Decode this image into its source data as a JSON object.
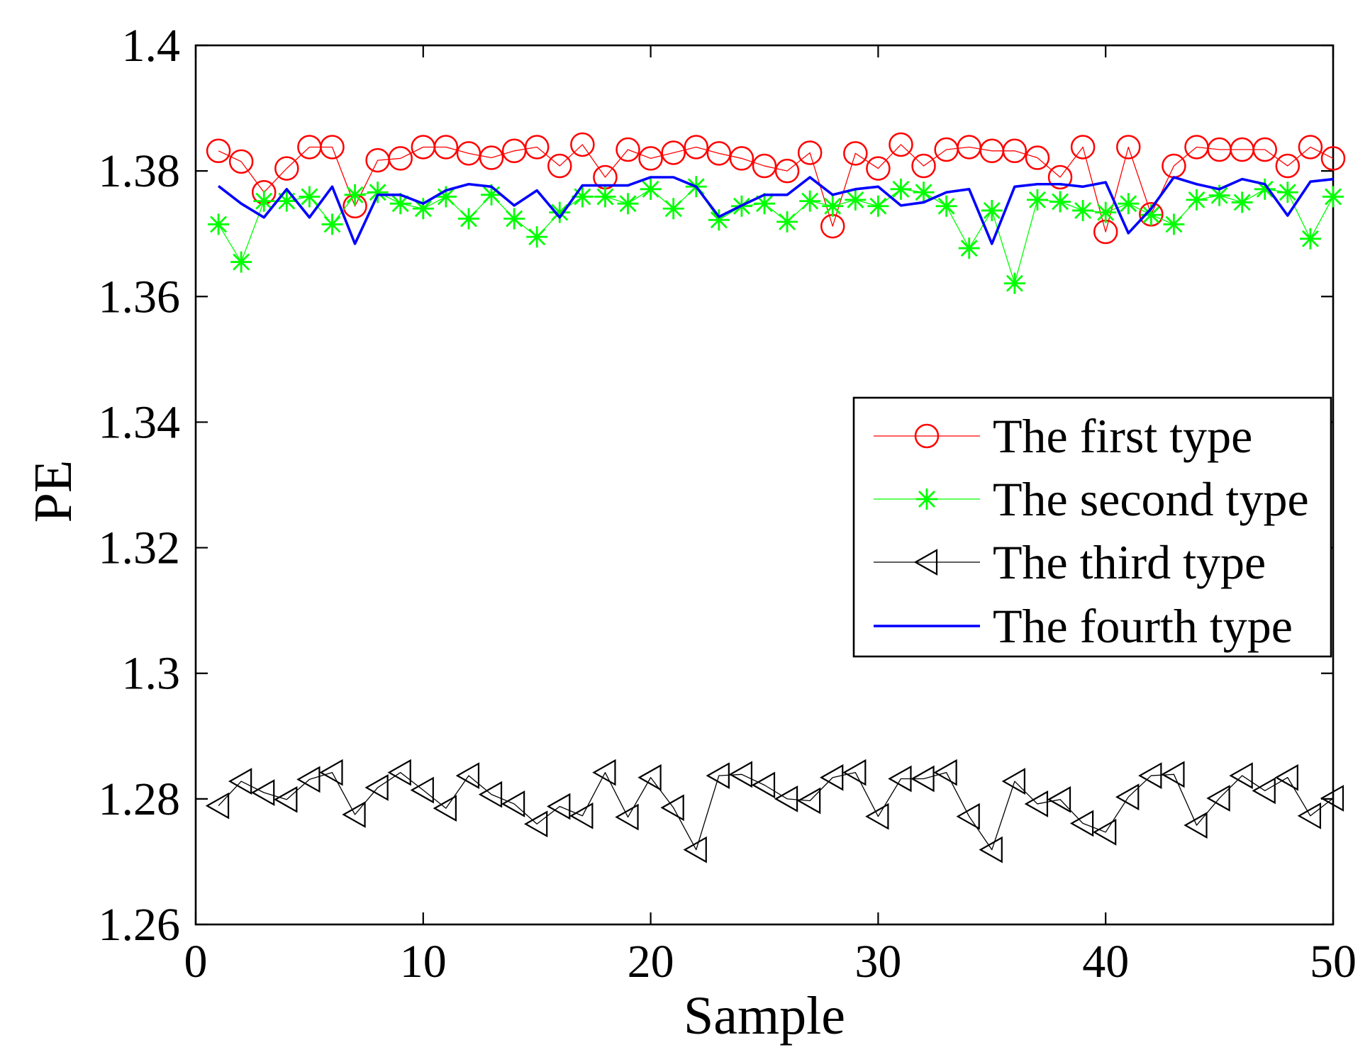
{
  "chart_data": {
    "type": "line",
    "xlabel": "Sample",
    "ylabel": "PE",
    "xlim": [
      0,
      50
    ],
    "ylim": [
      1.26,
      1.4
    ],
    "xticks": [
      0,
      10,
      20,
      30,
      40,
      50
    ],
    "xticklabels": [
      "0",
      "10",
      "20",
      "30",
      "40",
      "50"
    ],
    "yticks": [
      1.26,
      1.28,
      1.3,
      1.32,
      1.34,
      1.36,
      1.38,
      1.4
    ],
    "yticklabels": [
      "1.26",
      "1.28",
      "1.3",
      "1.32",
      "1.34",
      "1.36",
      "1.38",
      "1.4"
    ],
    "grid": false,
    "legend_position": "center-right",
    "x": [
      1,
      2,
      3,
      4,
      5,
      6,
      7,
      8,
      9,
      10,
      11,
      12,
      13,
      14,
      15,
      16,
      17,
      18,
      19,
      20,
      21,
      22,
      23,
      24,
      25,
      26,
      27,
      28,
      29,
      30,
      31,
      32,
      33,
      34,
      35,
      36,
      37,
      38,
      39,
      40,
      41,
      42,
      43,
      44,
      45,
      46,
      47,
      48,
      49,
      50
    ],
    "series": [
      {
        "name": "The first type",
        "color": "#ff0000",
        "marker": "circle",
        "values": [
          1.3832,
          1.3815,
          1.3766,
          1.3804,
          1.3838,
          1.3838,
          1.3744,
          1.3817,
          1.382,
          1.3838,
          1.3838,
          1.3828,
          1.3821,
          1.3832,
          1.3838,
          1.3808,
          1.3842,
          1.379,
          1.3834,
          1.382,
          1.3829,
          1.3838,
          1.3828,
          1.382,
          1.3808,
          1.38,
          1.3829,
          1.3712,
          1.3828,
          1.3804,
          1.3842,
          1.3808,
          1.3834,
          1.3838,
          1.3832,
          1.3832,
          1.3821,
          1.379,
          1.3838,
          1.3703,
          1.3838,
          1.3731,
          1.3808,
          1.3838,
          1.3834,
          1.3834,
          1.3834,
          1.3808,
          1.3838,
          1.382
        ]
      },
      {
        "name": "The second type",
        "color": "#00ff00",
        "marker": "asterisk",
        "values": [
          1.3715,
          1.3655,
          1.3752,
          1.3752,
          1.3759,
          1.3715,
          1.3762,
          1.3766,
          1.3748,
          1.374,
          1.3759,
          1.3724,
          1.3762,
          1.3724,
          1.3695,
          1.3734,
          1.3759,
          1.3759,
          1.3748,
          1.3771,
          1.374,
          1.3775,
          1.3722,
          1.3744,
          1.3748,
          1.3719,
          1.3752,
          1.3744,
          1.3754,
          1.3744,
          1.3771,
          1.3766,
          1.3744,
          1.3677,
          1.3737,
          1.3621,
          1.3754,
          1.3751,
          1.3737,
          1.3734,
          1.3748,
          1.373,
          1.3715,
          1.3754,
          1.3761,
          1.375,
          1.3771,
          1.3766,
          1.3692,
          1.3759
        ]
      },
      {
        "name": "The third type",
        "color": "#000000",
        "marker": "triangle-left",
        "values": [
          1.2789,
          1.2828,
          1.281,
          1.2799,
          1.2831,
          1.2842,
          1.2775,
          1.2818,
          1.2842,
          1.2814,
          1.2785,
          1.2837,
          1.2807,
          1.2792,
          1.276,
          1.2788,
          1.2773,
          1.2842,
          1.2771,
          1.2834,
          1.2786,
          1.2719,
          1.2837,
          1.2839,
          1.2822,
          1.28,
          1.2797,
          1.2834,
          1.2842,
          1.2772,
          1.2832,
          1.2832,
          1.2842,
          1.2772,
          1.2719,
          1.2828,
          1.2792,
          1.2799,
          1.2761,
          1.2747,
          1.2803,
          1.2837,
          1.2839,
          1.2758,
          1.2801,
          1.2837,
          1.2813,
          1.2834,
          1.2773,
          1.2801
        ]
      },
      {
        "name": "The fourth type",
        "color": "#0000ff",
        "marker": "none",
        "values": [
          1.3776,
          1.3748,
          1.3726,
          1.3771,
          1.3726,
          1.3775,
          1.3684,
          1.3762,
          1.3762,
          1.3748,
          1.3769,
          1.3779,
          1.3775,
          1.3745,
          1.3769,
          1.3726,
          1.3777,
          1.3777,
          1.3777,
          1.379,
          1.379,
          1.3775,
          1.3727,
          1.3745,
          1.3762,
          1.3762,
          1.379,
          1.3762,
          1.3771,
          1.3775,
          1.3745,
          1.375,
          1.3766,
          1.3771,
          1.3684,
          1.3775,
          1.3779,
          1.3779,
          1.3775,
          1.3782,
          1.3701,
          1.374,
          1.379,
          1.3779,
          1.3771,
          1.3787,
          1.3779,
          1.3729,
          1.3783,
          1.3787
        ]
      }
    ]
  }
}
